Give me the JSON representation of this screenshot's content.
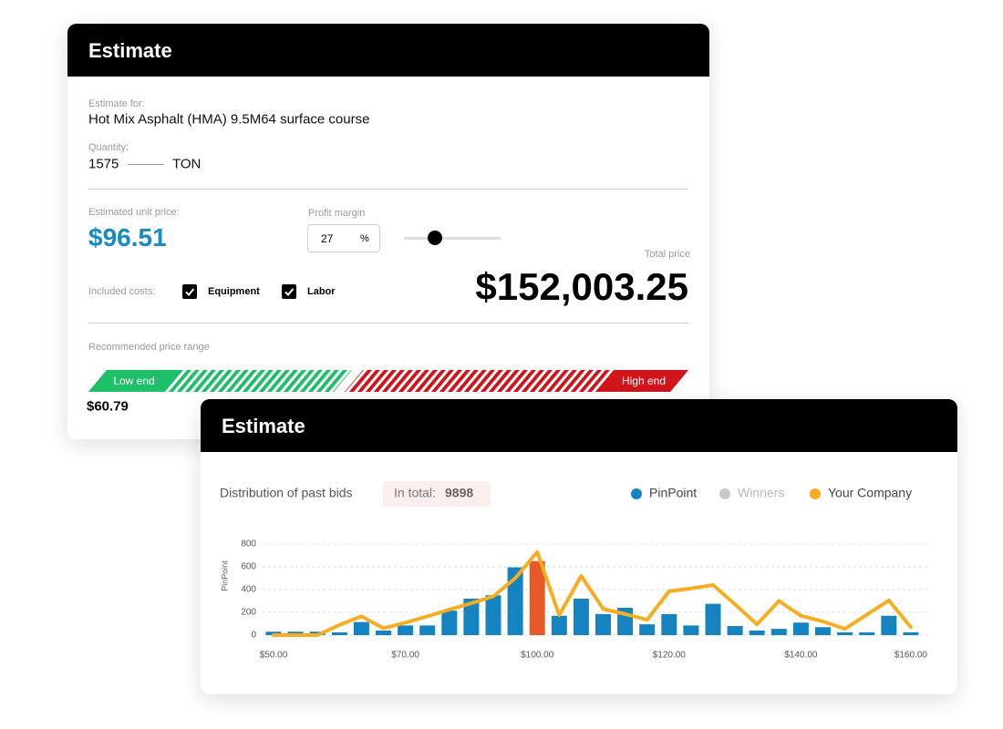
{
  "estimate_card": {
    "title": "Estimate",
    "estimate_for_label": "Estimate for:",
    "product": "Hot Mix Asphalt (HMA) 9.5M64 surface course",
    "quantity_label": "Quantity:",
    "quantity": 1575,
    "unit": "TON",
    "unit_price_label": "Estimated unit price:",
    "unit_price": "$96.51",
    "profit_margin_label": "Profit margin",
    "profit_margin": 27,
    "profit_margin_unit": "%",
    "total_price_label": "Total price",
    "total_price": "$152,003.25",
    "included_costs_label": "Included costs:",
    "included_costs": [
      {
        "name": "Equipment",
        "checked": true
      },
      {
        "name": "Labor",
        "checked": true
      }
    ],
    "price_range_label": "Recommended price range",
    "low_end_label": "Low end",
    "high_end_label": "High end",
    "low_end_price": "$60.79"
  },
  "bids_card": {
    "title": "Estimate",
    "chart_data": {
      "type": "bar",
      "title": "Distribution of past bids",
      "total_label": "In total:",
      "total": 9898,
      "y_label": "PinPoint",
      "categories": [
        "$50.00",
        null,
        null,
        null,
        null,
        null,
        "$70.00",
        null,
        null,
        null,
        null,
        null,
        "$100.00",
        null,
        null,
        null,
        null,
        null,
        "$120.00",
        null,
        null,
        null,
        null,
        null,
        "$140.00",
        null,
        null,
        null,
        null,
        "$160.00"
      ],
      "series": [
        {
          "name": "PinPoint",
          "type": "bar",
          "color": "#1583bf",
          "values": [
            30,
            30,
            30,
            25,
            115,
            40,
            85,
            85,
            215,
            320,
            350,
            595,
            650,
            170,
            320,
            185,
            240,
            95,
            185,
            85,
            275,
            80,
            40,
            55,
            110,
            70,
            25,
            25,
            170,
            25
          ]
        },
        {
          "name": "Winners",
          "color": "#c8c8c8",
          "hidden": true
        },
        {
          "name": "Your Company",
          "type": "line",
          "color": "#f6ad21",
          "values": [
            0,
            0,
            0,
            90,
            165,
            60,
            110,
            165,
            225,
            280,
            340,
            500,
            730,
            175,
            520,
            230,
            185,
            135,
            385,
            410,
            440,
            270,
            95,
            300,
            170,
            120,
            55,
            180,
            305,
            70
          ]
        }
      ],
      "highlight": {
        "index": 12,
        "color": "#e65a28"
      },
      "ylim": [
        0,
        800
      ],
      "yticks": [
        0,
        200,
        400,
        600,
        800
      ],
      "grid": true
    }
  }
}
